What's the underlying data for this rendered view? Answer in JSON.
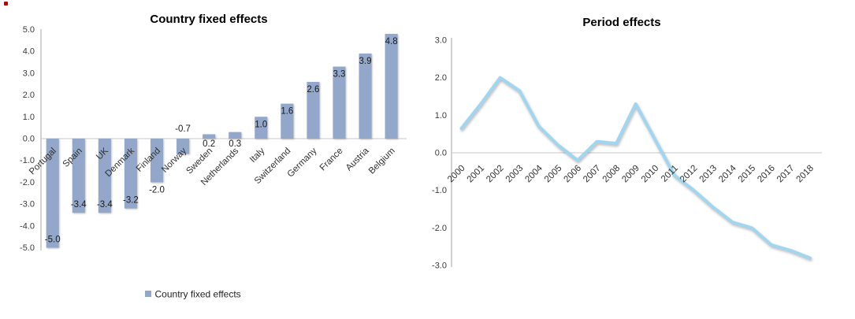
{
  "stray_mark_color": "#c00000",
  "chart_data": [
    {
      "type": "bar",
      "title": "Country fixed effects",
      "categories": [
        "Portugal",
        "Spain",
        "UK",
        "Denmark",
        "Finland",
        "Norway",
        "Sweden",
        "Netherlands",
        "Italy",
        "Switzerland",
        "Germany",
        "France",
        "Austria",
        "Belgium"
      ],
      "values": [
        -5.0,
        -3.4,
        -3.4,
        -3.2,
        -2.0,
        -0.7,
        0.2,
        0.3,
        1.0,
        1.6,
        2.6,
        3.3,
        3.9,
        4.8
      ],
      "data_labels": [
        "-5.0",
        "-3.4",
        "-3.4",
        "-3.2",
        "-2.0",
        "-0.7",
        "0.2",
        "0.3",
        "1.0",
        "1.6",
        "2.6",
        "3.3",
        "3.9",
        "4.8"
      ],
      "xlabel": "",
      "ylabel": "",
      "ylim": [
        -5.0,
        5.0
      ],
      "ytick_labels": [
        "5.0",
        "4.0",
        "3.0",
        "2.0",
        "1.0",
        "0.0",
        "-1.0",
        "-2.0",
        "-3.0",
        "-4.0",
        "-5.0"
      ],
      "grid": "zero-line-only",
      "legend": [
        "Country fixed effects"
      ],
      "legend_position": "bottom",
      "bar_color": "#92a7c9",
      "axis_color": "#a6a6a6",
      "gridline_color": "#c8c8c8"
    },
    {
      "type": "line",
      "title": "Period effects",
      "x": [
        "2000",
        "2001",
        "2002",
        "2003",
        "2004",
        "2005",
        "2006",
        "2007",
        "2008",
        "2009",
        "2010",
        "2011",
        "2012",
        "2013",
        "2014",
        "2015",
        "2016",
        "2017",
        "2018"
      ],
      "values": [
        0.65,
        1.3,
        2.0,
        1.65,
        0.7,
        0.2,
        -0.2,
        0.3,
        0.25,
        1.3,
        0.35,
        -0.6,
        -1.0,
        -1.45,
        -1.85,
        -2.0,
        -2.45,
        -2.6,
        -2.8
      ],
      "xlabel": "",
      "ylabel": "",
      "ylim": [
        -3.0,
        3.0
      ],
      "ytick_labels": [
        "3.0",
        "2.0",
        "1.0",
        "0.0",
        "-1.0",
        "-2.0",
        "-3.0"
      ],
      "grid": "zero-line-only",
      "legend_position": "none",
      "line_color": "#a0d6f0",
      "axis_color": "#a6a6a6",
      "gridline_color": "#c8c8c8"
    }
  ]
}
